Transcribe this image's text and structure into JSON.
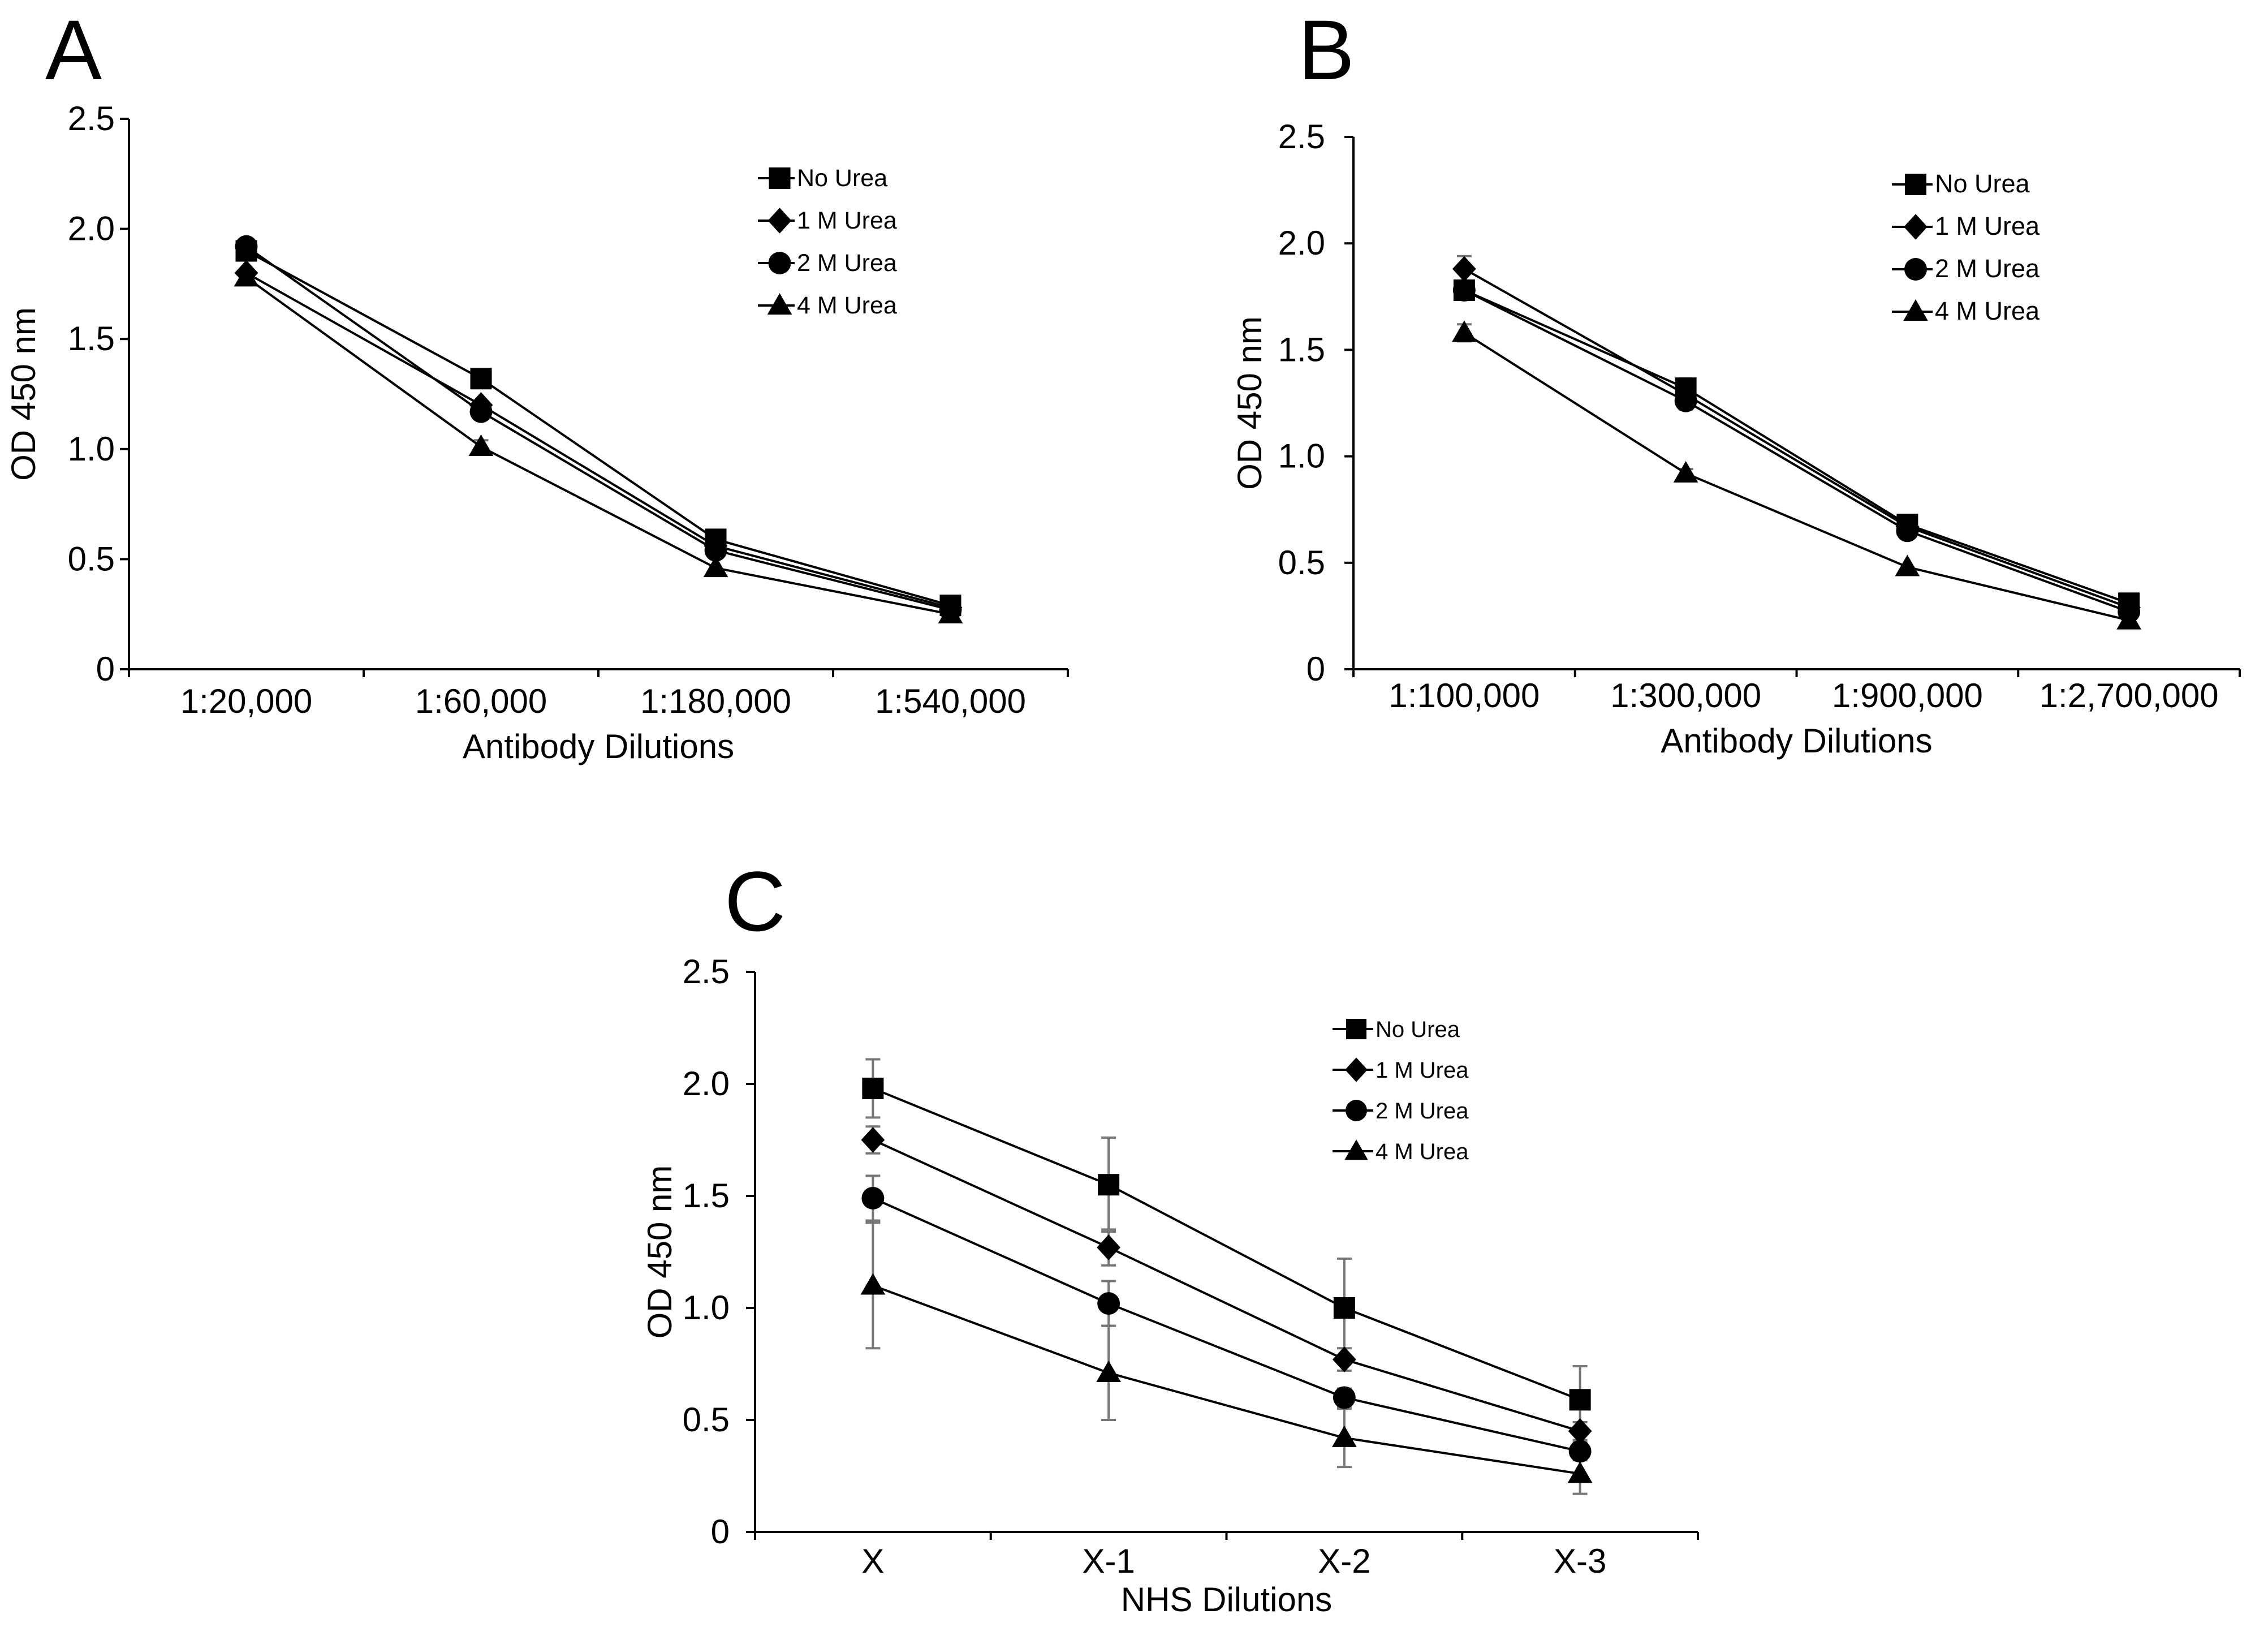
{
  "figure": {
    "panels": [
      "A",
      "B",
      "C"
    ]
  },
  "chart_data": [
    {
      "panel": "A",
      "type": "line",
      "title": "",
      "xlabel": "Antibody Dilutions",
      "ylabel": "OD 450 nm",
      "ylim": [
        0,
        2.5
      ],
      "yticks": [
        "0",
        "0.5",
        "1.0",
        "1.5",
        "2.0",
        "2.5"
      ],
      "categories": [
        "1:20,000",
        "1:60,000",
        "1:180,000",
        "1:540,000"
      ],
      "legend_position": "top-right",
      "series": [
        {
          "name": "No Urea",
          "marker": "square",
          "values": [
            1.9,
            1.32,
            0.59,
            0.29
          ],
          "errors": [
            0,
            0,
            0,
            0
          ]
        },
        {
          "name": "1 M Urea",
          "marker": "diamond",
          "values": [
            1.8,
            1.2,
            0.56,
            0.28
          ],
          "errors": [
            0,
            0,
            0,
            0
          ]
        },
        {
          "name": "2 M Urea",
          "marker": "circle",
          "values": [
            1.92,
            1.17,
            0.54,
            0.27
          ],
          "errors": [
            0,
            0,
            0,
            0
          ]
        },
        {
          "name": "4 M Urea",
          "marker": "triangle",
          "values": [
            1.78,
            1.01,
            0.46,
            0.25
          ],
          "errors": [
            0,
            0.03,
            0,
            0
          ]
        }
      ]
    },
    {
      "panel": "B",
      "type": "line",
      "title": "",
      "xlabel": "Antibody Dilutions",
      "ylabel": "OD 450 nm",
      "ylim": [
        0,
        2.5
      ],
      "yticks": [
        "0",
        "0.5",
        "1.0",
        "1.5",
        "2.0",
        "2.5"
      ],
      "categories": [
        "1:100,000",
        "1:300,000",
        "1:900,000",
        "1:2,700,000"
      ],
      "legend_position": "top-right",
      "series": [
        {
          "name": "No Urea",
          "marker": "square",
          "values": [
            1.78,
            1.32,
            0.68,
            0.31
          ],
          "errors": [
            0,
            0.02,
            0,
            0
          ]
        },
        {
          "name": "1 M Urea",
          "marker": "diamond",
          "values": [
            1.88,
            1.29,
            0.67,
            0.29
          ],
          "errors": [
            0.06,
            0.02,
            0,
            0
          ]
        },
        {
          "name": "2 M Urea",
          "marker": "circle",
          "values": [
            1.78,
            1.26,
            0.65,
            0.27
          ],
          "errors": [
            0,
            0.04,
            0,
            0
          ]
        },
        {
          "name": "4 M Urea",
          "marker": "triangle",
          "values": [
            1.58,
            0.92,
            0.48,
            0.23
          ],
          "errors": [
            0.04,
            0.02,
            0,
            0
          ]
        }
      ]
    },
    {
      "panel": "C",
      "type": "line",
      "title": "",
      "xlabel": "NHS Dilutions",
      "ylabel": "OD 450 nm",
      "ylim": [
        0,
        2.5
      ],
      "yticks": [
        "0",
        "0.5",
        "1.0",
        "1.5",
        "2.0",
        "2.5"
      ],
      "categories": [
        "X",
        "X-1",
        "X-2",
        "X-3"
      ],
      "legend_position": "top-right",
      "series": [
        {
          "name": "No Urea",
          "marker": "square",
          "values": [
            1.98,
            1.55,
            1.0,
            0.59
          ],
          "errors": [
            0.13,
            0.21,
            0.22,
            0.15
          ]
        },
        {
          "name": "1 M Urea",
          "marker": "diamond",
          "values": [
            1.75,
            1.27,
            0.77,
            0.45
          ],
          "errors": [
            0.06,
            0.08,
            0.05,
            0.04
          ]
        },
        {
          "name": "2 M Urea",
          "marker": "circle",
          "values": [
            1.49,
            1.02,
            0.6,
            0.36
          ],
          "errors": [
            0.1,
            0.1,
            0.04,
            0.04
          ]
        },
        {
          "name": "4 M Urea",
          "marker": "triangle",
          "values": [
            1.1,
            0.71,
            0.42,
            0.26
          ],
          "errors": [
            0.28,
            0.21,
            0.13,
            0.09
          ]
        }
      ]
    }
  ]
}
